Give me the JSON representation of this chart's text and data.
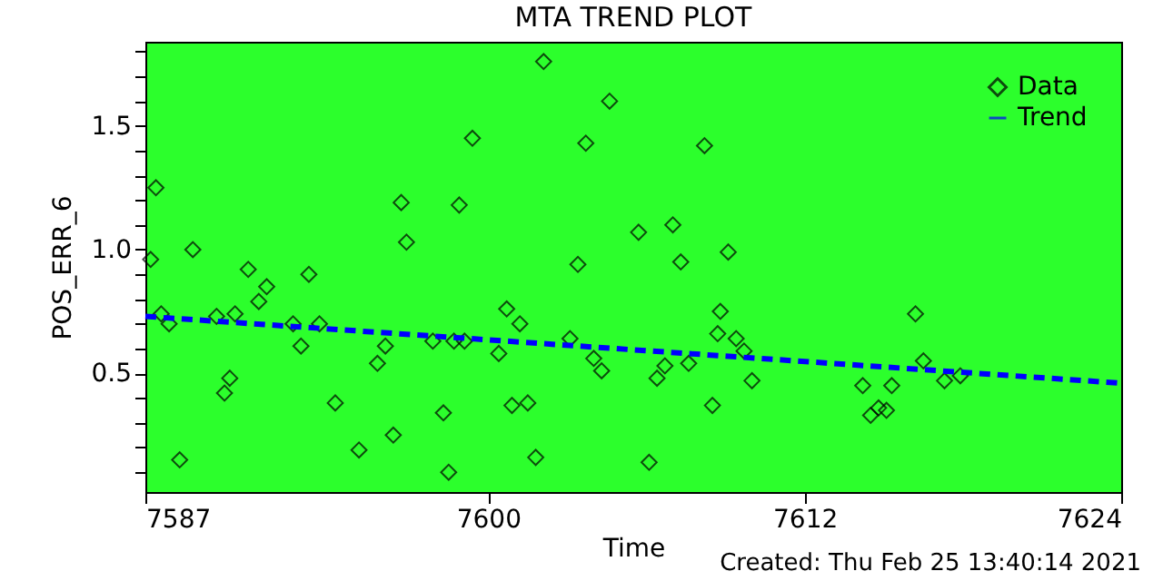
{
  "chart_data": {
    "type": "scatter",
    "title": "MTA TREND PLOT",
    "xlabel": "Time",
    "ylabel": "POS_ERR_6",
    "annotations": [
      "Created: Thu Feb 25 13:40:14 2021"
    ],
    "xlim": [
      7587,
      7624
    ],
    "xticks": [
      7587,
      7600,
      7612,
      7624
    ],
    "ylim": [
      0.02,
      1.84
    ],
    "yticks": [
      {
        "value": 0.1,
        "label": null
      },
      {
        "value": 0.2,
        "label": null
      },
      {
        "value": 0.3,
        "label": null
      },
      {
        "value": 0.4,
        "label": null
      },
      {
        "value": 0.5,
        "label": "0.5"
      },
      {
        "value": 0.6,
        "label": null
      },
      {
        "value": 0.7,
        "label": null
      },
      {
        "value": 0.8,
        "label": null
      },
      {
        "value": 0.9,
        "label": null
      },
      {
        "value": 1,
        "label": "1.0"
      },
      {
        "value": 1.1,
        "label": null
      },
      {
        "value": 1.2,
        "label": null
      },
      {
        "value": 1.3,
        "label": null
      },
      {
        "value": 1.4,
        "label": null
      },
      {
        "value": 1.5,
        "label": "1.5"
      },
      {
        "value": 1.6,
        "label": null
      },
      {
        "value": 1.7,
        "label": null
      },
      {
        "value": 1.8,
        "label": null
      }
    ],
    "legend": "top right",
    "series": [
      {
        "name": "Data",
        "type": "scatter",
        "color": "#000000",
        "marker": "diamond",
        "x": [
          7587.2,
          7587.4,
          7587.6,
          7587.9,
          7588.3,
          7588.8,
          7589.7,
          7590.0,
          7590.2,
          7590.4,
          7590.9,
          7591.3,
          7591.6,
          7592.6,
          7592.9,
          7593.2,
          7593.6,
          7594.2,
          7595.1,
          7595.8,
          7596.1,
          7596.4,
          7596.7,
          7596.9,
          7597.9,
          7598.3,
          7598.5,
          7598.7,
          7598.9,
          7599.1,
          7599.4,
          7600.4,
          7600.7,
          7600.9,
          7601.2,
          7601.5,
          7601.8,
          7602.1,
          7603.1,
          7603.4,
          7603.7,
          7604.0,
          7604.3,
          7604.6,
          7605.7,
          7606.1,
          7606.4,
          7606.7,
          7607.0,
          7607.3,
          7607.6,
          7608.2,
          7608.5,
          7608.7,
          7608.8,
          7609.1,
          7609.4,
          7609.7,
          7610.0,
          7614.2,
          7614.5,
          7614.8,
          7615.1,
          7615.3,
          7616.2,
          7616.5,
          7617.3,
          7617.9
        ],
        "values": [
          0.96,
          1.25,
          0.74,
          0.7,
          0.15,
          1.0,
          0.73,
          0.42,
          0.48,
          0.74,
          0.92,
          0.79,
          0.85,
          0.7,
          0.61,
          0.9,
          0.7,
          0.38,
          0.19,
          0.54,
          0.61,
          0.25,
          1.19,
          1.03,
          0.63,
          0.34,
          0.1,
          0.63,
          1.18,
          0.63,
          1.45,
          0.58,
          0.76,
          0.37,
          0.7,
          0.38,
          0.16,
          1.76,
          0.64,
          0.94,
          1.43,
          0.56,
          0.51,
          1.6,
          1.07,
          0.14,
          0.48,
          0.53,
          1.1,
          0.95,
          0.54,
          1.42,
          0.37,
          0.66,
          0.75,
          0.99,
          0.64,
          0.59,
          0.47,
          0.45,
          0.33,
          0.36,
          0.35,
          0.45,
          0.74,
          0.55,
          0.47,
          0.49
        ]
      },
      {
        "name": "Trend",
        "type": "line",
        "color": "#0000ff",
        "marker": "none",
        "line_style": "dashed",
        "x": [
          7587,
          7624
        ],
        "values": [
          0.73,
          0.46
        ]
      }
    ]
  }
}
